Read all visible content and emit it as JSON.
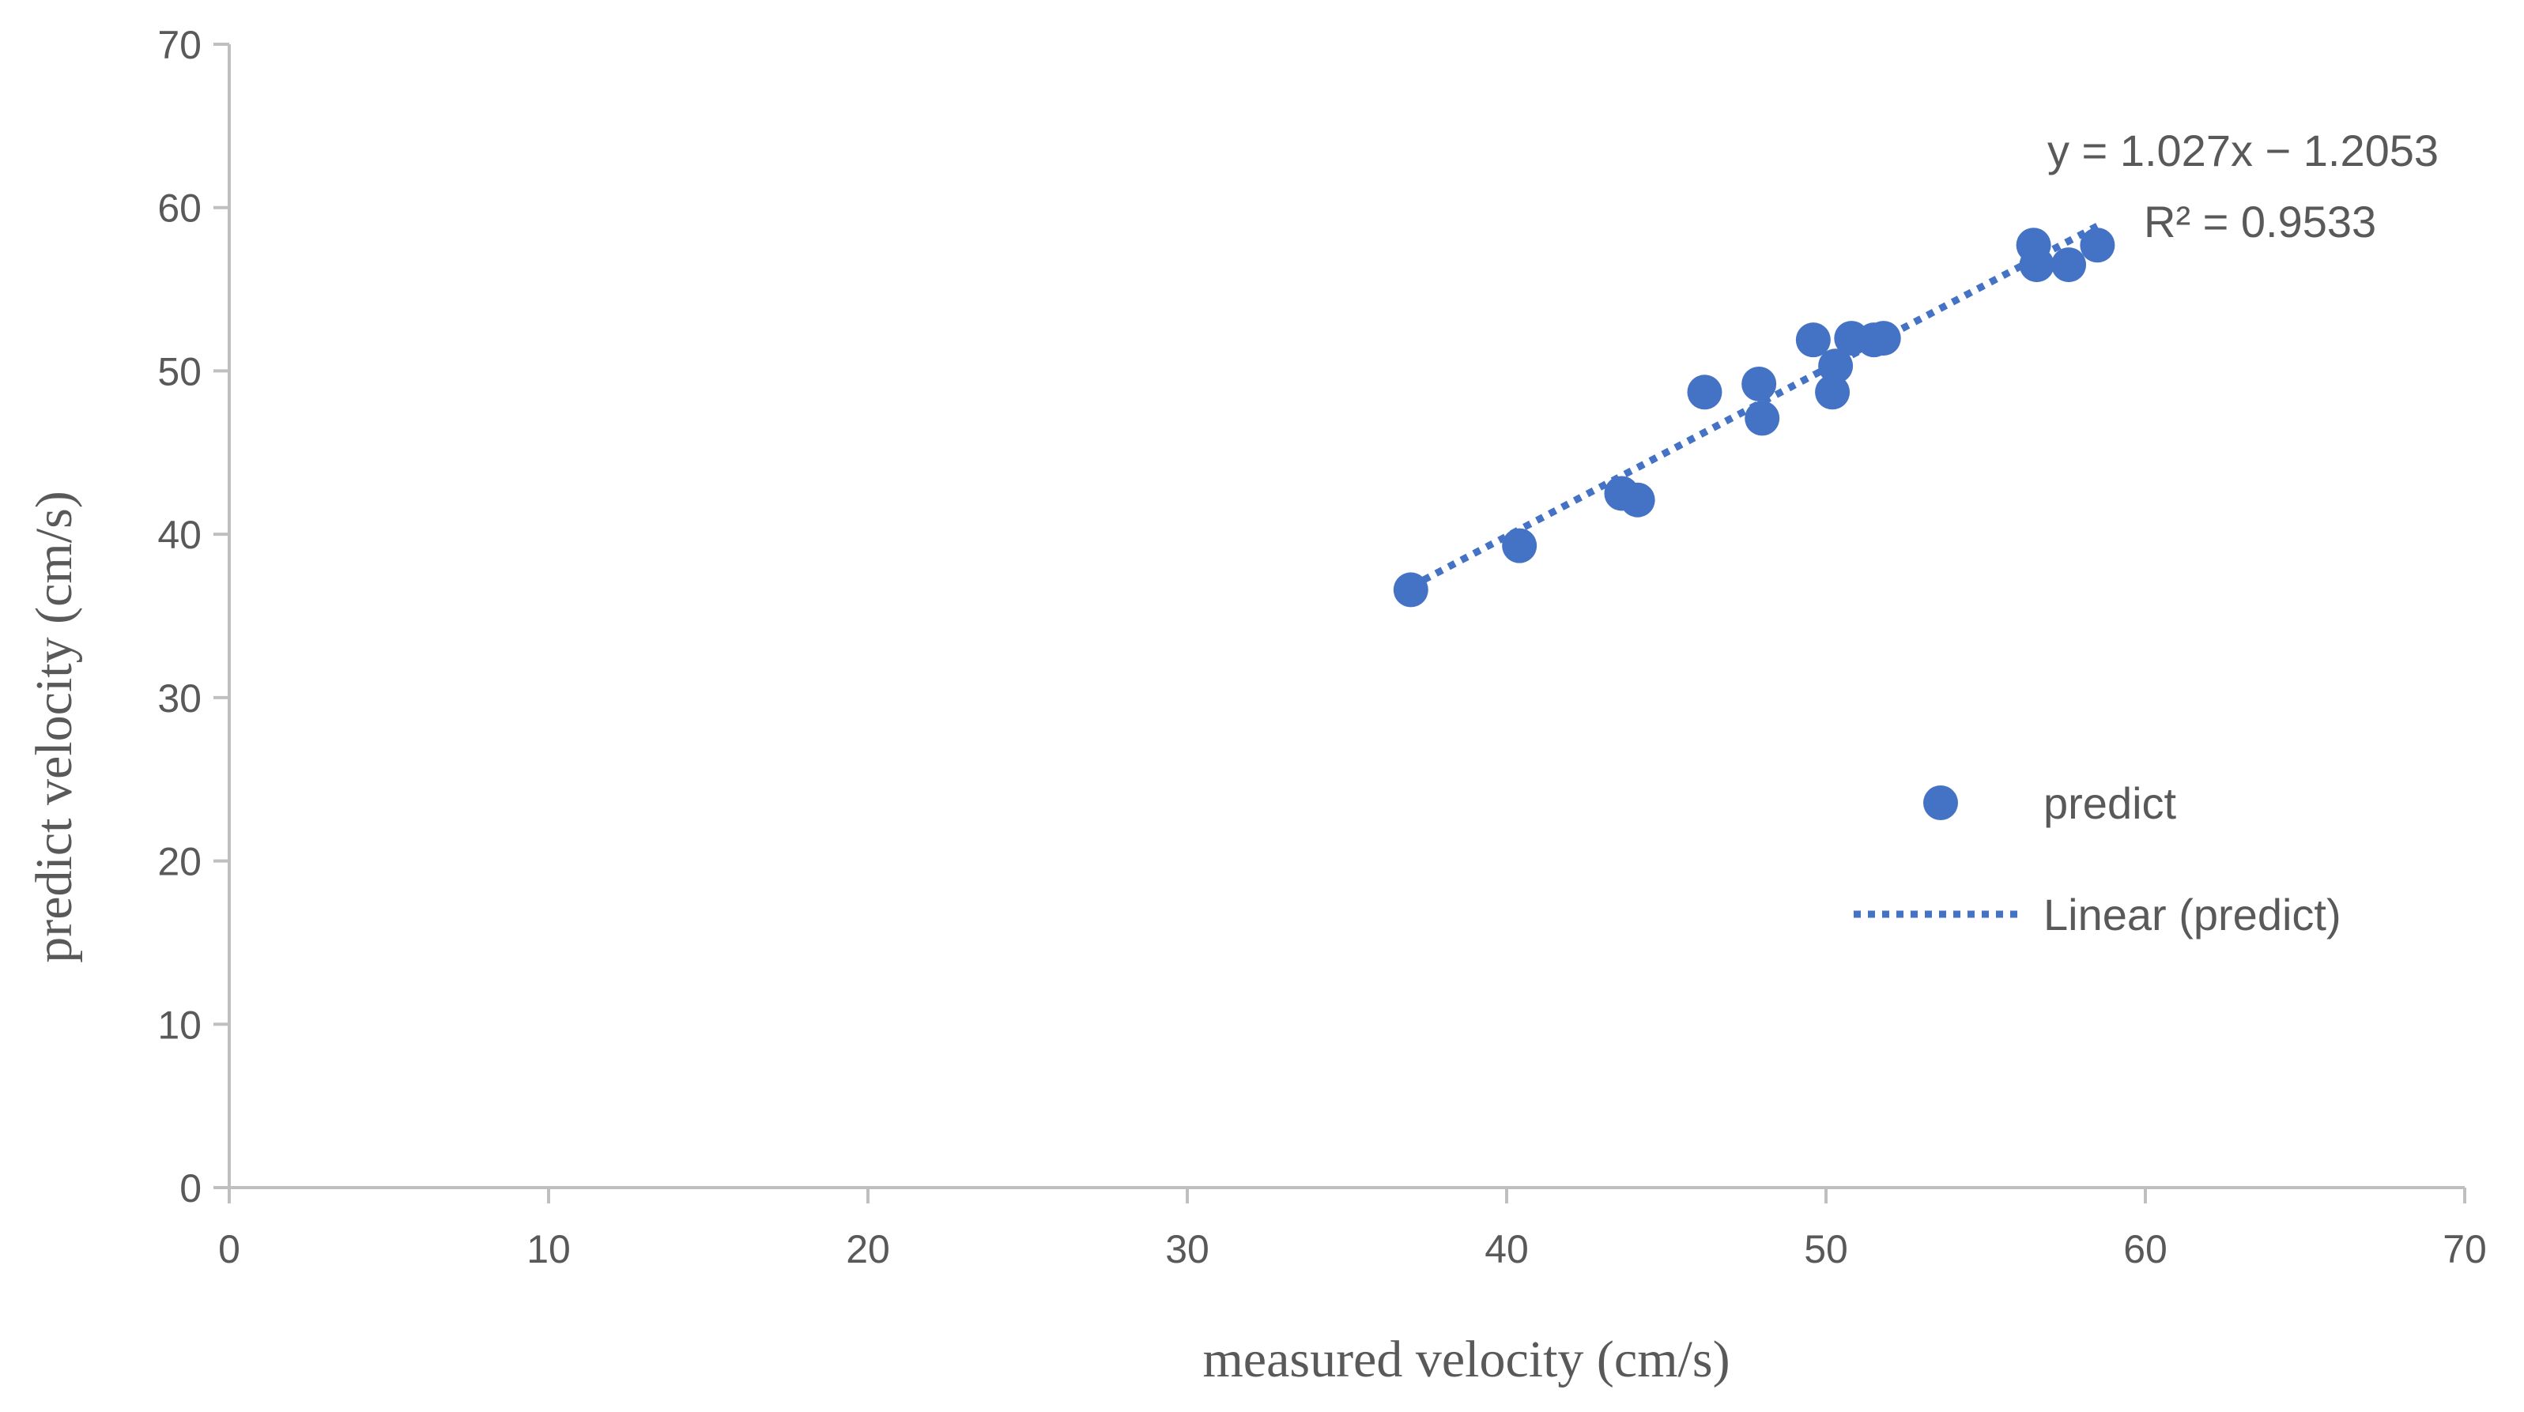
{
  "chart_data": {
    "type": "scatter",
    "title": "",
    "xlabel": "measured velocity (cm/s)",
    "ylabel": "predict velocity (cm/s)",
    "xlim": [
      0,
      70
    ],
    "ylim": [
      0,
      70
    ],
    "x_ticks": [
      0,
      10,
      20,
      30,
      40,
      50,
      60,
      70
    ],
    "y_ticks": [
      0,
      10,
      20,
      30,
      40,
      50,
      60,
      70
    ],
    "grid": false,
    "series": [
      {
        "name": "predict",
        "color": "#4472C4",
        "marker": "circle",
        "points": [
          {
            "x": 37.0,
            "y": 36.6
          },
          {
            "x": 40.4,
            "y": 39.3
          },
          {
            "x": 43.6,
            "y": 42.5
          },
          {
            "x": 44.1,
            "y": 42.1
          },
          {
            "x": 46.2,
            "y": 48.7
          },
          {
            "x": 47.9,
            "y": 49.2
          },
          {
            "x": 48.0,
            "y": 47.1
          },
          {
            "x": 49.6,
            "y": 51.9
          },
          {
            "x": 50.2,
            "y": 48.7
          },
          {
            "x": 50.3,
            "y": 50.3
          },
          {
            "x": 50.8,
            "y": 52.0
          },
          {
            "x": 51.5,
            "y": 51.9
          },
          {
            "x": 51.8,
            "y": 52.0
          },
          {
            "x": 56.5,
            "y": 57.7
          },
          {
            "x": 56.6,
            "y": 56.5
          },
          {
            "x": 57.6,
            "y": 56.5
          },
          {
            "x": 58.5,
            "y": 57.7
          }
        ]
      }
    ],
    "trendline": {
      "name": "Linear (predict)",
      "type": "linear",
      "slope": 1.027,
      "intercept": -1.2053,
      "x_range": [
        37.0,
        58.5
      ],
      "style": "dotted",
      "color": "#4472C4"
    },
    "annotations": {
      "equation": "y = 1.027x − 1.2053",
      "r_squared": "R² = 0.9533"
    },
    "legend": {
      "placement": "right",
      "entries": [
        {
          "label": "predict",
          "marker": "circle"
        },
        {
          "label": "Linear (predict)",
          "marker": "dotted-line"
        }
      ]
    },
    "colors": {
      "axis": "#BFBFBF",
      "text": "#595959",
      "series": "#4472C4"
    }
  }
}
